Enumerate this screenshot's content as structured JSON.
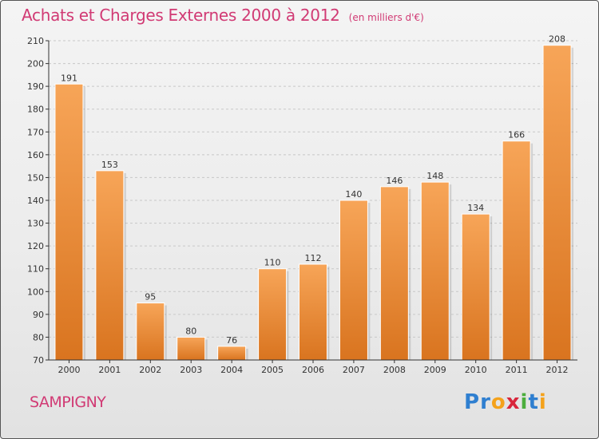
{
  "title": "Achats et Charges Externes 2000 à 2012",
  "subtitle": "(en milliers d'€)",
  "commune": "SAMPIGNY",
  "logo": {
    "text": "Proxiti",
    "letters": [
      {
        "ch": "P",
        "color": "#2f7fd0"
      },
      {
        "ch": "r",
        "color": "#2f7fd0"
      },
      {
        "ch": "o",
        "color": "#f4a21c"
      },
      {
        "ch": "x",
        "color": "#d8263c"
      },
      {
        "ch": "i",
        "color": "#4cae3d"
      },
      {
        "ch": "t",
        "color": "#2f7fd0"
      },
      {
        "ch": "i",
        "color": "#f4a21c"
      }
    ]
  },
  "colors": {
    "title": "#d13a74",
    "bar_top": "#f7a558",
    "bar_bottom": "#d9741f",
    "grid": "#c8c8c8",
    "axis": "#333333"
  },
  "chart_data": {
    "type": "bar",
    "categories": [
      "2000",
      "2001",
      "2002",
      "2003",
      "2004",
      "2005",
      "2006",
      "2007",
      "2008",
      "2009",
      "2010",
      "2011",
      "2012"
    ],
    "values": [
      191,
      153,
      95,
      80,
      76,
      110,
      112,
      140,
      146,
      148,
      134,
      166,
      208
    ],
    "ylim": [
      70,
      210
    ],
    "yticks": [
      70,
      80,
      90,
      100,
      110,
      120,
      130,
      140,
      150,
      160,
      170,
      180,
      190,
      200,
      210
    ],
    "grid": true,
    "data_labels": true
  }
}
